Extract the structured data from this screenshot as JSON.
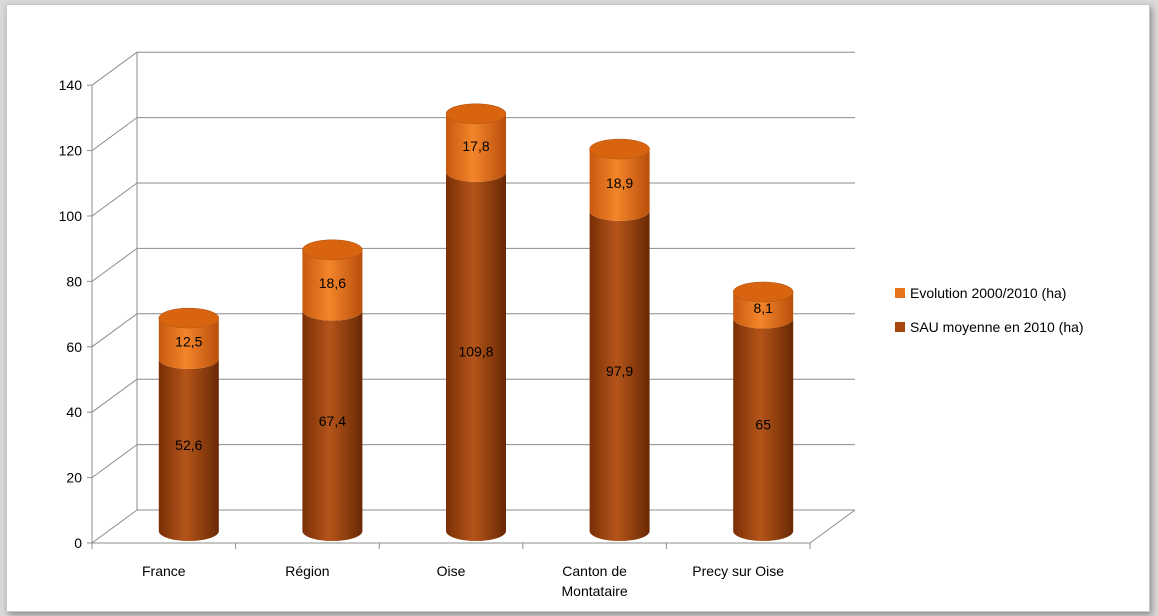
{
  "chart_data": {
    "type": "bar",
    "stacked": true,
    "style": "3d-cylinder",
    "categories": [
      "France",
      "Région",
      "Oise",
      "Canton de Montataire",
      "Precy sur Oise"
    ],
    "category_lines": [
      [
        "France"
      ],
      [
        "Région"
      ],
      [
        "Oise"
      ],
      [
        "Canton de",
        "Montataire"
      ],
      [
        "Precy sur Oise"
      ]
    ],
    "series": [
      {
        "name": "SAU moyenne en 2010 (ha)",
        "values": [
          52.6,
          67.4,
          109.8,
          97.9,
          65
        ],
        "labels": [
          "52,6",
          "67,4",
          "109,8",
          "97,9",
          "65"
        ],
        "color": "#a8480f"
      },
      {
        "name": "Evolution 2000/2010 (ha)",
        "values": [
          12.5,
          18.6,
          17.8,
          18.9,
          8.1
        ],
        "labels": [
          "12,5",
          "18,6",
          "17,8",
          "18,9",
          "8,1"
        ],
        "color": "#e5731c"
      }
    ],
    "legend_order": [
      "Evolution 2000/2010 (ha)",
      "SAU moyenne en 2010 (ha)"
    ],
    "yticks": [
      "0",
      "20",
      "40",
      "60",
      "80",
      "100",
      "120",
      "140"
    ],
    "ylim": [
      0,
      140
    ],
    "grid": true,
    "legend_position": "right"
  }
}
